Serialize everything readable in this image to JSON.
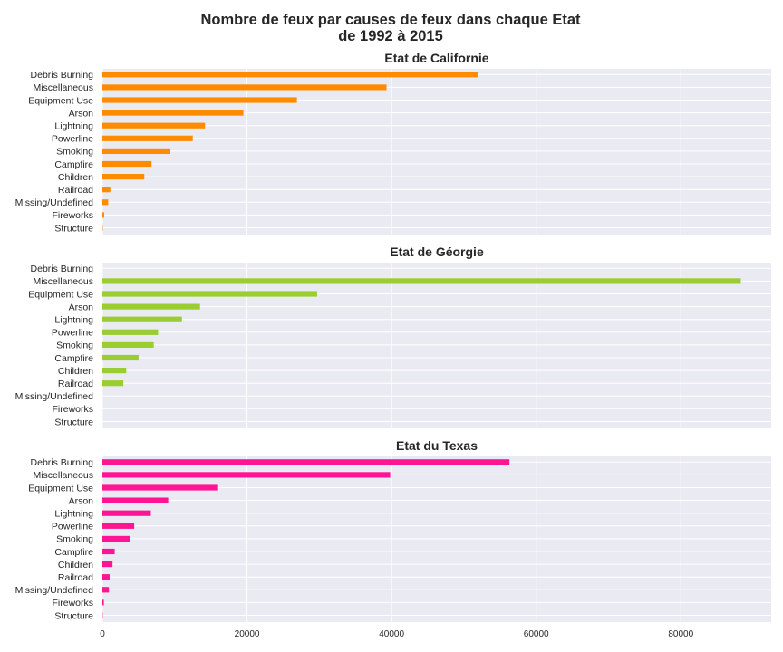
{
  "chart_data": {
    "type": "bar",
    "orientation": "horizontal",
    "title_line1": "Nombre de feux par causes de feux dans chaque Etat",
    "title_line2": "de 1992 à 2015",
    "categories": [
      "Debris Burning",
      "Miscellaneous",
      "Equipment Use",
      "Arson",
      "Lightning",
      "Powerline",
      "Smoking",
      "Campfire",
      "Children",
      "Railroad",
      "Missing/Undefined",
      "Fireworks",
      "Structure"
    ],
    "xlim": [
      0,
      92500
    ],
    "xticks": [
      0,
      20000,
      40000,
      60000,
      80000
    ],
    "xtick_labels": [
      "0",
      "20000",
      "40000",
      "60000",
      "80000"
    ],
    "grid": true,
    "background_color": "#EAEAF2",
    "panels": [
      {
        "title": "Etat de Californie",
        "color": "#FF8C00",
        "values": [
          52000,
          39300,
          26900,
          19500,
          14200,
          12500,
          9400,
          6800,
          5800,
          1100,
          800,
          250,
          50
        ]
      },
      {
        "title": "Etat de Géorgie",
        "color": "#9ACD32",
        "values": [
          0,
          88300,
          29700,
          13500,
          11000,
          7700,
          7100,
          5000,
          3300,
          2900,
          0,
          0,
          0
        ]
      },
      {
        "title": "Etat du Texas",
        "color": "#FF1493",
        "values": [
          56300,
          39800,
          16000,
          9100,
          6700,
          4400,
          3800,
          1700,
          1400,
          1000,
          900,
          200,
          40
        ]
      }
    ]
  }
}
